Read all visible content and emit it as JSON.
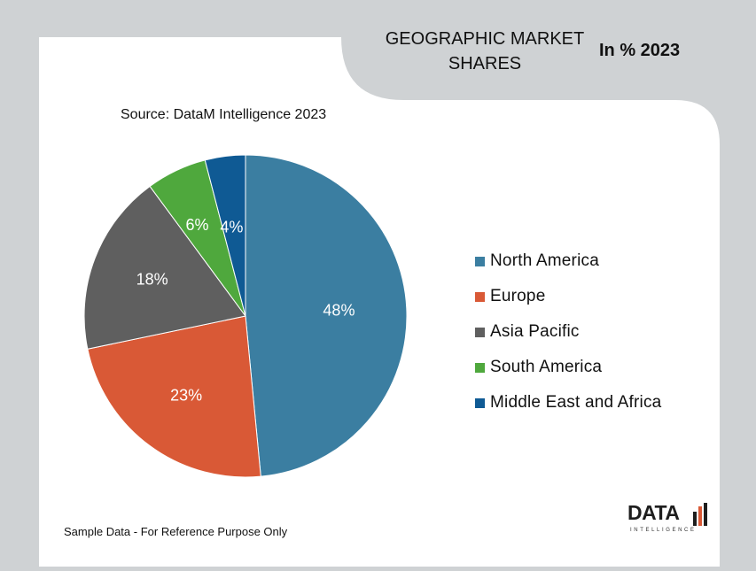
{
  "header": {
    "title": "GEOGRAPHIC MARKET SHARES",
    "year_label": "In % 2023"
  },
  "source_text": "Source: DataM Intelligence 2023",
  "footer_text": "Sample Data - For Reference Purpose Only",
  "logo": {
    "text": "DATA",
    "subtext": "INTELLIGENCE"
  },
  "chart_data": {
    "type": "pie",
    "categories": [
      "North America",
      "Europe",
      "Asia Pacific",
      "South America",
      "Middle East and Africa"
    ],
    "values": [
      48,
      23,
      18,
      6,
      4
    ],
    "data_labels": [
      "48%",
      "23%",
      "18%",
      "6%",
      "4%"
    ],
    "colors": [
      "#3b7ea1",
      "#d95936",
      "#5f5f5f",
      "#4fa83d",
      "#0f5a94"
    ],
    "start_angle_deg": 0,
    "direction": "clockwise",
    "legend_position": "right"
  }
}
